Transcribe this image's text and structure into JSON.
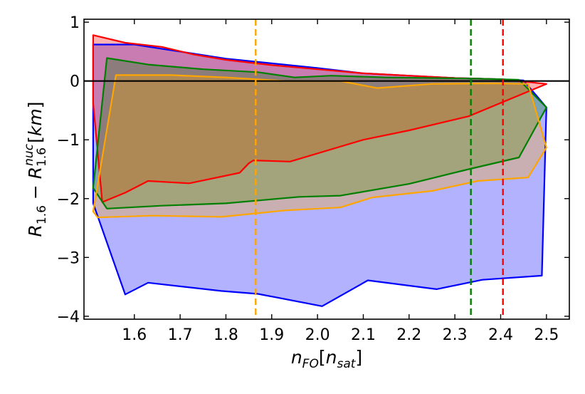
{
  "chart_data": {
    "type": "area",
    "xlabel": {
      "base": "n",
      "sub": "FO",
      "bracket_base": "n",
      "bracket_sub": "sat"
    },
    "ylabel": {
      "r1": "R",
      "r1_sub": "1.6",
      "minus": " − ",
      "r2": "R",
      "r2_sub": "1.6",
      "r2_sup": "nuc",
      "unit": "km"
    },
    "xlim": [
      1.49,
      2.55
    ],
    "ylim": [
      -4.05,
      1.05
    ],
    "xticks": [
      1.6,
      1.7,
      1.8,
      1.9,
      2.0,
      2.1,
      2.2,
      2.3,
      2.4,
      2.5
    ],
    "yticks": [
      -4,
      -3,
      -2,
      -1,
      0,
      1
    ],
    "xtick_labels": [
      "1.6",
      "1.7",
      "1.8",
      "1.9",
      "2.0",
      "2.1",
      "2.2",
      "2.3",
      "2.4",
      "2.5"
    ],
    "ytick_labels": [
      "−4",
      "−3",
      "−2",
      "−1",
      "0",
      "1"
    ],
    "grid": false,
    "hline": 0,
    "series": [
      {
        "color": "#0000ff",
        "fill": "#0000ff",
        "fill_alpha": 0.3,
        "upper": [
          [
            1.51,
            0.62
          ],
          [
            1.6,
            0.62
          ],
          [
            1.7,
            0.5
          ],
          [
            1.8,
            0.38
          ],
          [
            1.9,
            0.3
          ],
          [
            2.0,
            0.22
          ],
          [
            2.1,
            0.13
          ],
          [
            2.2,
            0.09
          ],
          [
            2.3,
            0.05
          ],
          [
            2.4,
            0.03
          ],
          [
            2.45,
            0.01
          ],
          [
            2.5,
            -0.45
          ]
        ],
        "lower": [
          [
            1.51,
            -2.08
          ],
          [
            1.58,
            -3.63
          ],
          [
            1.63,
            -3.43
          ],
          [
            1.79,
            -3.57
          ],
          [
            1.87,
            -3.62
          ],
          [
            2.01,
            -3.83
          ],
          [
            2.11,
            -3.39
          ],
          [
            2.26,
            -3.54
          ],
          [
            2.36,
            -3.38
          ],
          [
            2.49,
            -3.31
          ],
          [
            2.5,
            -0.45
          ]
        ]
      },
      {
        "color": "#ff0000",
        "fill": "#ff0000",
        "fill_alpha": 0.3,
        "upper": [
          [
            1.51,
            0.78
          ],
          [
            1.58,
            0.65
          ],
          [
            1.66,
            0.58
          ],
          [
            1.73,
            0.45
          ],
          [
            1.8,
            0.36
          ],
          [
            1.9,
            0.27
          ],
          [
            2.0,
            0.2
          ],
          [
            2.1,
            0.13
          ],
          [
            2.2,
            0.09
          ],
          [
            2.3,
            0.05
          ],
          [
            2.4,
            0.03
          ],
          [
            2.5,
            -0.05
          ]
        ],
        "lower": [
          [
            1.51,
            -0.38
          ],
          [
            1.53,
            -2.06
          ],
          [
            1.58,
            -1.9
          ],
          [
            1.63,
            -1.7
          ],
          [
            1.72,
            -1.74
          ],
          [
            1.83,
            -1.56
          ],
          [
            1.85,
            -1.4
          ],
          [
            1.86,
            -1.35
          ],
          [
            1.94,
            -1.37
          ],
          [
            2.1,
            -1.0
          ],
          [
            2.2,
            -0.84
          ],
          [
            2.33,
            -0.6
          ],
          [
            2.5,
            -0.05
          ]
        ]
      },
      {
        "color": "#008000",
        "fill": "#008000",
        "fill_alpha": 0.3,
        "upper": [
          [
            1.51,
            -1.82
          ],
          [
            1.54,
            0.39
          ],
          [
            1.63,
            0.28
          ],
          [
            1.75,
            0.2
          ],
          [
            1.87,
            0.15
          ],
          [
            1.95,
            0.06
          ],
          [
            2.03,
            0.09
          ],
          [
            2.15,
            0.06
          ],
          [
            2.25,
            0.05
          ],
          [
            2.35,
            0.04
          ],
          [
            2.44,
            0.02
          ],
          [
            2.5,
            -0.45
          ]
        ],
        "lower": [
          [
            1.51,
            -1.82
          ],
          [
            1.54,
            -2.17
          ],
          [
            1.66,
            -2.12
          ],
          [
            1.8,
            -2.08
          ],
          [
            1.96,
            -1.97
          ],
          [
            2.05,
            -1.95
          ],
          [
            2.2,
            -1.75
          ],
          [
            2.33,
            -1.5
          ],
          [
            2.44,
            -1.3
          ],
          [
            2.5,
            -0.45
          ]
        ]
      },
      {
        "color": "#ffa500",
        "fill": "#ffa500",
        "fill_alpha": 0.3,
        "upper": [
          [
            1.51,
            -2.22
          ],
          [
            1.56,
            0.1
          ],
          [
            1.68,
            0.1
          ],
          [
            1.8,
            0.06
          ],
          [
            1.93,
            0.0
          ],
          [
            2.05,
            0.0
          ],
          [
            2.13,
            -0.12
          ],
          [
            2.25,
            -0.05
          ],
          [
            2.38,
            -0.04
          ],
          [
            2.46,
            -0.05
          ],
          [
            2.5,
            -1.13
          ]
        ],
        "lower": [
          [
            1.51,
            -2.22
          ],
          [
            1.52,
            -2.32
          ],
          [
            1.64,
            -2.29
          ],
          [
            1.79,
            -2.31
          ],
          [
            1.93,
            -2.2
          ],
          [
            2.05,
            -2.15
          ],
          [
            2.12,
            -1.98
          ],
          [
            2.25,
            -1.87
          ],
          [
            2.35,
            -1.7
          ],
          [
            2.46,
            -1.64
          ],
          [
            2.5,
            -1.13
          ]
        ]
      }
    ],
    "vlines": [
      {
        "x": 1.865,
        "color": "#ffa500"
      },
      {
        "x": 2.335,
        "color": "#008000"
      },
      {
        "x": 2.405,
        "color": "#ff0000"
      }
    ]
  }
}
